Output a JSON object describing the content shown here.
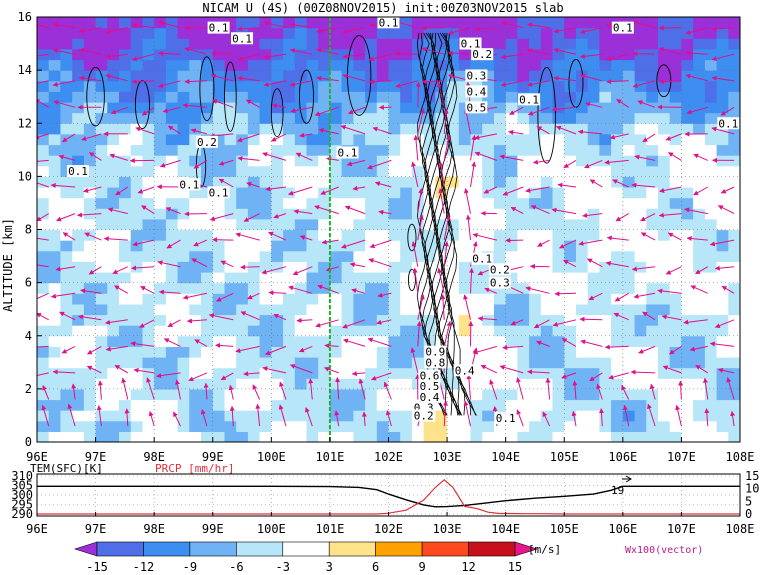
{
  "title": "NICAM U (4S) (00Z08NOV2015) init:00Z03NOV2015 slab",
  "chart_data": [
    {
      "type": "heatmap",
      "name": "main-cross-section",
      "xlabel": "",
      "ylabel": "ALTITUDE [km]",
      "x_ticks": [
        "96E",
        "97E",
        "98E",
        "99E",
        "100E",
        "101E",
        "102E",
        "103E",
        "104E",
        "105E",
        "106E",
        "107E",
        "108E"
      ],
      "y_ticks": [
        "0",
        "2",
        "4",
        "6",
        "8",
        "10",
        "12",
        "14",
        "16"
      ],
      "xlim": [
        96,
        108
      ],
      "ylim": [
        0,
        16
      ],
      "grid": true,
      "marker_line_lon": 101,
      "color_levels": [
        -15,
        -12,
        -9,
        -6,
        -3,
        3,
        6,
        9,
        12,
        15
      ],
      "colors": [
        "#9b2fd8",
        "#4f6fe8",
        "#3d8ef0",
        "#6fb3f5",
        "#b7e6f8",
        "#ffffff",
        "#ffe38a",
        "#ffa200",
        "#ff4a1f",
        "#c8101a",
        "#e8158f"
      ],
      "contour_labels": [
        {
          "text": "0.1",
          "lon": 99.1,
          "alt": 15.6
        },
        {
          "text": "0.1",
          "lon": 99.5,
          "alt": 15.2
        },
        {
          "text": "0.1",
          "lon": 102.0,
          "alt": 15.8
        },
        {
          "text": "0.1",
          "lon": 103.4,
          "alt": 15.0
        },
        {
          "text": "0.2",
          "lon": 103.6,
          "alt": 14.6
        },
        {
          "text": "0.3",
          "lon": 103.5,
          "alt": 13.8
        },
        {
          "text": "0.4",
          "lon": 103.5,
          "alt": 13.2
        },
        {
          "text": "0.5",
          "lon": 103.5,
          "alt": 12.6
        },
        {
          "text": "0.1",
          "lon": 106.0,
          "alt": 15.6
        },
        {
          "text": "0.1",
          "lon": 104.4,
          "alt": 12.9
        },
        {
          "text": "0.1",
          "lon": 107.8,
          "alt": 12.0
        },
        {
          "text": "0.2",
          "lon": 98.9,
          "alt": 11.3
        },
        {
          "text": "0.1",
          "lon": 101.3,
          "alt": 10.9
        },
        {
          "text": "0.1",
          "lon": 96.7,
          "alt": 10.2
        },
        {
          "text": "0.1",
          "lon": 98.6,
          "alt": 9.7
        },
        {
          "text": "0.1",
          "lon": 99.1,
          "alt": 9.4
        },
        {
          "text": "0.1",
          "lon": 103.6,
          "alt": 6.9
        },
        {
          "text": "0.2",
          "lon": 103.9,
          "alt": 6.5
        },
        {
          "text": "0.3",
          "lon": 103.9,
          "alt": 6.0
        },
        {
          "text": "0.9",
          "lon": 102.8,
          "alt": 3.4
        },
        {
          "text": "0.8",
          "lon": 102.8,
          "alt": 3.0
        },
        {
          "text": "0.6",
          "lon": 102.7,
          "alt": 2.5
        },
        {
          "text": "0.5",
          "lon": 102.7,
          "alt": 2.1
        },
        {
          "text": "0.4",
          "lon": 102.7,
          "alt": 1.7
        },
        {
          "text": "0.3",
          "lon": 102.6,
          "alt": 1.3
        },
        {
          "text": "0.2",
          "lon": 102.6,
          "alt": 1.0
        },
        {
          "text": "0.4",
          "lon": 103.3,
          "alt": 2.7
        },
        {
          "text": "0.1",
          "lon": 104.0,
          "alt": 0.9
        }
      ]
    },
    {
      "type": "line",
      "name": "surface-panel",
      "xlabel": "",
      "x_ticks": [
        "96E",
        "97E",
        "98E",
        "99E",
        "100E",
        "101E",
        "102E",
        "103E",
        "104E",
        "105E",
        "106E",
        "107E",
        "108E"
      ],
      "series": [
        {
          "name": "TEM(SFC)[K]",
          "axis": "left",
          "color": "#000000",
          "lon": [
            96,
            97,
            98,
            99,
            100,
            100.5,
            101,
            101.5,
            101.8,
            102.0,
            102.3,
            102.6,
            102.8,
            103.0,
            103.3,
            103.6,
            104,
            104.5,
            105,
            105.5,
            105.8,
            106,
            107,
            108
          ],
          "values": [
            304.6,
            304.6,
            304.6,
            304.6,
            304.6,
            304.5,
            304.4,
            304.0,
            302.8,
            300.5,
            297.5,
            294.8,
            293.8,
            293.9,
            294.5,
            295.6,
            297.0,
            298.3,
            299.3,
            300.5,
            302.5,
            304.6,
            304.6,
            304.6
          ]
        },
        {
          "name": "PRCP [mm/hr]",
          "axis": "right",
          "color": "#e0303a",
          "lon": [
            96,
            100,
            101,
            101.8,
            102,
            102.3,
            102.6,
            102.8,
            102.95,
            103.1,
            103.3,
            103.5,
            103.7,
            103.9,
            104.1,
            104.3,
            104.6,
            105,
            108
          ],
          "values": [
            0,
            0,
            0,
            0,
            0.3,
            1.5,
            5.5,
            10.5,
            13.5,
            10.5,
            3.0,
            2.2,
            0.7,
            0.2,
            0.2,
            0.1,
            0.1,
            0,
            0
          ]
        }
      ],
      "left_axis_ticks": [
        "310",
        "305",
        "300",
        "295",
        "290"
      ],
      "left_ylim": [
        290,
        310
      ],
      "right_axis_ticks": [
        "15",
        "10",
        "5",
        "0"
      ],
      "right_ylim": [
        0,
        15
      ],
      "annotation": "19"
    }
  ],
  "colorbar": {
    "labels": [
      "-15",
      "-12",
      "-9",
      "-6",
      "-3",
      "3",
      "6",
      "9",
      "12",
      "15"
    ],
    "unit": "[m/s]",
    "vector_label": "Wx100(vector)"
  }
}
